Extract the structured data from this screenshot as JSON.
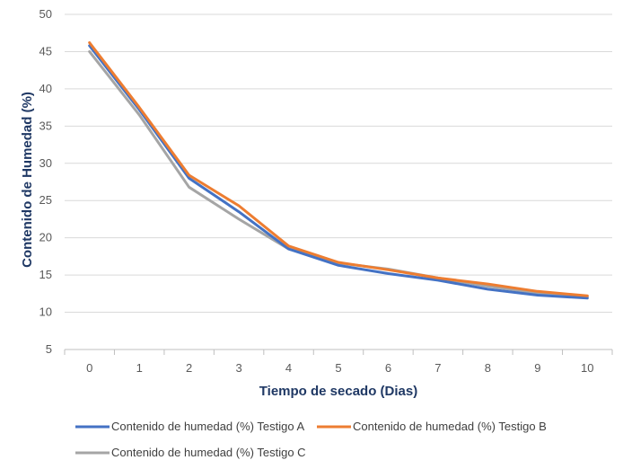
{
  "chart_data": {
    "type": "line",
    "x": [
      0,
      1,
      2,
      3,
      4,
      5,
      6,
      7,
      8,
      9,
      10
    ],
    "series": [
      {
        "name": "Contenido de humedad (%) Testigo A",
        "color": "#4472c4",
        "values": [
          45.8,
          37.2,
          28.0,
          23.5,
          18.5,
          16.3,
          15.2,
          14.3,
          13.1,
          12.3,
          11.9
        ]
      },
      {
        "name": "Contenido de humedad (%) Testigo B",
        "color": "#ed7d31",
        "values": [
          46.2,
          37.5,
          28.4,
          24.3,
          18.9,
          16.7,
          15.7,
          14.6,
          13.8,
          12.8,
          12.2
        ]
      },
      {
        "name": "Contenido de humedad (%) Testigo C",
        "color": "#a5a5a5",
        "values": [
          45.0,
          36.5,
          26.8,
          22.5,
          18.5,
          16.6,
          15.8,
          14.6,
          13.5,
          12.6,
          12.1
        ]
      }
    ],
    "xlabel": "Tiempo de secado (Dias)",
    "ylabel": "Contenido de Humedad (%)",
    "ylim": [
      5,
      50
    ],
    "yticks": [
      5,
      10,
      15,
      20,
      25,
      30,
      35,
      40,
      45,
      50
    ],
    "xticks": [
      0,
      1,
      2,
      3,
      4,
      5,
      6,
      7,
      8,
      9,
      10
    ],
    "grid": "horizontal",
    "legend": "bottom"
  }
}
